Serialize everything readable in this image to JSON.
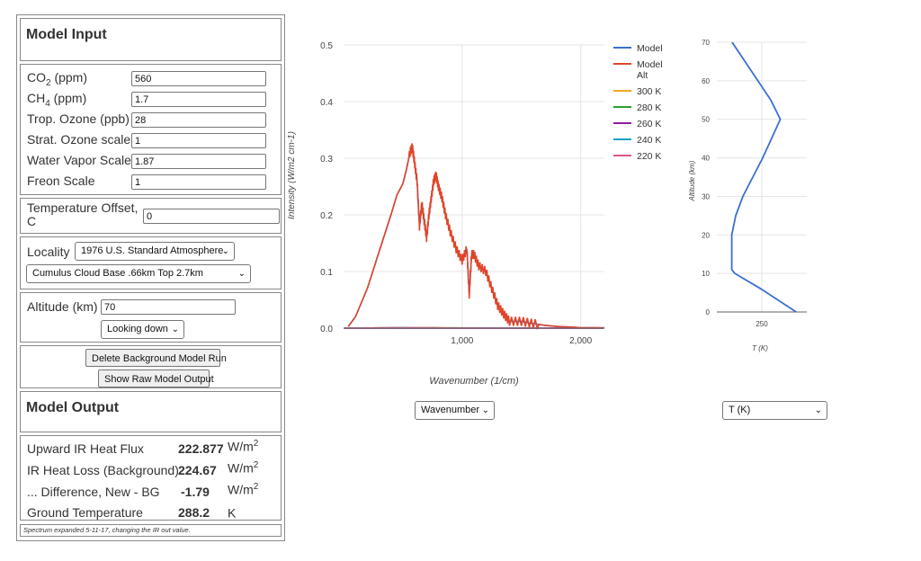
{
  "input": {
    "heading": "Model Input",
    "co2": {
      "label": "CO",
      "sub": "2",
      "unit": " (ppm)",
      "value": "560"
    },
    "ch4": {
      "label": "CH",
      "sub": "4",
      "unit": " (ppm)",
      "value": "1.7"
    },
    "trop_ozone": {
      "label": "Trop. Ozone (ppb)",
      "value": "28"
    },
    "strat_ozone": {
      "label": "Strat. Ozone scale",
      "value": "1"
    },
    "water_vapor": {
      "label": "Water Vapor Scale",
      "value": "1.87"
    },
    "freon": {
      "label": "Freon Scale",
      "value": "1"
    },
    "temp_offset": {
      "label_line1": "Temperature Offset,",
      "label_line2": "C",
      "value": "0"
    },
    "locality": {
      "label": "Locality",
      "selected": "1976 U.S. Standard Atmosphere"
    },
    "cloud": {
      "selected": "Cumulus Cloud Base .66km Top 2.7km"
    },
    "altitude": {
      "label": "Altitude (km)",
      "value": "70"
    },
    "looking": {
      "selected": "Looking down"
    },
    "delete_button": "Delete Background Model Run",
    "raw_button": "Show Raw Model Output"
  },
  "output": {
    "heading": "Model Output",
    "rows": [
      {
        "label": "Upward IR Heat Flux",
        "value": "222.877",
        "unit": "W/m",
        "sup": "2"
      },
      {
        "label": "IR Heat Loss (Background)",
        "value": "224.67",
        "unit": "W/m",
        "sup": "2"
      },
      {
        "label": "... Difference, New - BG",
        "value": "-1.79",
        "unit": "W/m",
        "sup": "2"
      },
      {
        "label": "Ground Temperature",
        "value": "288.2",
        "unit": "K",
        "sup": ""
      }
    ],
    "note": "Spectrum expanded 5-11-17, changing the IR out value."
  },
  "spectrum_select": "Wavenumber",
  "profile_select": "T (K)",
  "chart_data": [
    {
      "type": "line",
      "xlabel": "Wavenumber (1/cm)",
      "ylabel": "Intensity (W/m2 cm-1)",
      "xlim": [
        0,
        2200
      ],
      "ylim": [
        0,
        0.5
      ],
      "xticks": [
        {
          "v": 1000,
          "label": "1,000"
        },
        {
          "v": 2000,
          "label": "2,000"
        }
      ],
      "yticks": [
        {
          "v": 0,
          "label": "0.0"
        },
        {
          "v": 0.1,
          "label": "0.1"
        },
        {
          "v": 0.2,
          "label": "0.2"
        },
        {
          "v": 0.3,
          "label": "0.3"
        },
        {
          "v": 0.4,
          "label": "0.4"
        },
        {
          "v": 0.5,
          "label": "0.5"
        }
      ],
      "grid": true,
      "legend_position": "right",
      "planck_series": [
        {
          "name": "300 K",
          "temperature": 300,
          "color": "#f5a623"
        },
        {
          "name": "280 K",
          "temperature": 280,
          "color": "#2ca02c"
        },
        {
          "name": "260 K",
          "temperature": 260,
          "color": "#8e1c9e"
        },
        {
          "name": "240 K",
          "temperature": 240,
          "color": "#17a2c8"
        },
        {
          "name": "220 K",
          "temperature": 220,
          "color": "#d9588a"
        }
      ],
      "model_series": [
        {
          "name": "Model",
          "color": "#3a6fd0"
        },
        {
          "name": "Model Alt",
          "name_line1": "Model",
          "name_line2": "Alt",
          "color": "#e0452a"
        }
      ],
      "model_points": {
        "x": [
          40,
          100,
          200,
          300,
          400,
          450,
          500,
          530,
          560,
          580,
          600,
          620,
          640,
          660,
          680,
          700,
          720,
          740,
          760,
          780,
          800,
          830,
          860,
          900,
          950,
          1000,
          1040,
          1060,
          1080,
          1100,
          1140,
          1200,
          1250,
          1300,
          1350,
          1400,
          1500,
          1600,
          1700,
          1800,
          2000,
          2200
        ],
        "y": [
          0.003,
          0.02,
          0.07,
          0.135,
          0.2,
          0.235,
          0.255,
          0.28,
          0.31,
          0.32,
          0.29,
          0.26,
          0.18,
          0.22,
          0.19,
          0.16,
          0.2,
          0.23,
          0.26,
          0.27,
          0.25,
          0.23,
          0.2,
          0.17,
          0.14,
          0.12,
          0.14,
          0.06,
          0.13,
          0.13,
          0.11,
          0.1,
          0.07,
          0.04,
          0.025,
          0.012,
          0.012,
          0.008,
          0.005,
          0.003,
          0.001,
          0.0005
        ]
      }
    },
    {
      "type": "line",
      "xlabel": "T (K)",
      "ylabel": "Altitude (km)",
      "xlim": [
        200,
        300
      ],
      "ylim": [
        0,
        70
      ],
      "xticks": [
        {
          "v": 250,
          "label": "250"
        }
      ],
      "yticks": [
        {
          "v": 0,
          "label": "0"
        },
        {
          "v": 10,
          "label": "10"
        },
        {
          "v": 20,
          "label": "20"
        },
        {
          "v": 30,
          "label": "30"
        },
        {
          "v": 40,
          "label": "40"
        },
        {
          "v": 50,
          "label": "50"
        },
        {
          "v": 60,
          "label": "60"
        },
        {
          "v": 70,
          "label": "70"
        }
      ],
      "grid": true,
      "series": [
        {
          "name": "T profile",
          "color": "#3a6fd0",
          "x": [
            288.2,
            249,
            220,
            216.6,
            216.6,
            221,
            229,
            240,
            251,
            270.6,
            260,
            217
          ],
          "y": [
            0,
            6,
            10,
            11,
            20,
            25,
            30,
            35,
            40,
            50,
            55,
            70
          ]
        }
      ]
    }
  ]
}
